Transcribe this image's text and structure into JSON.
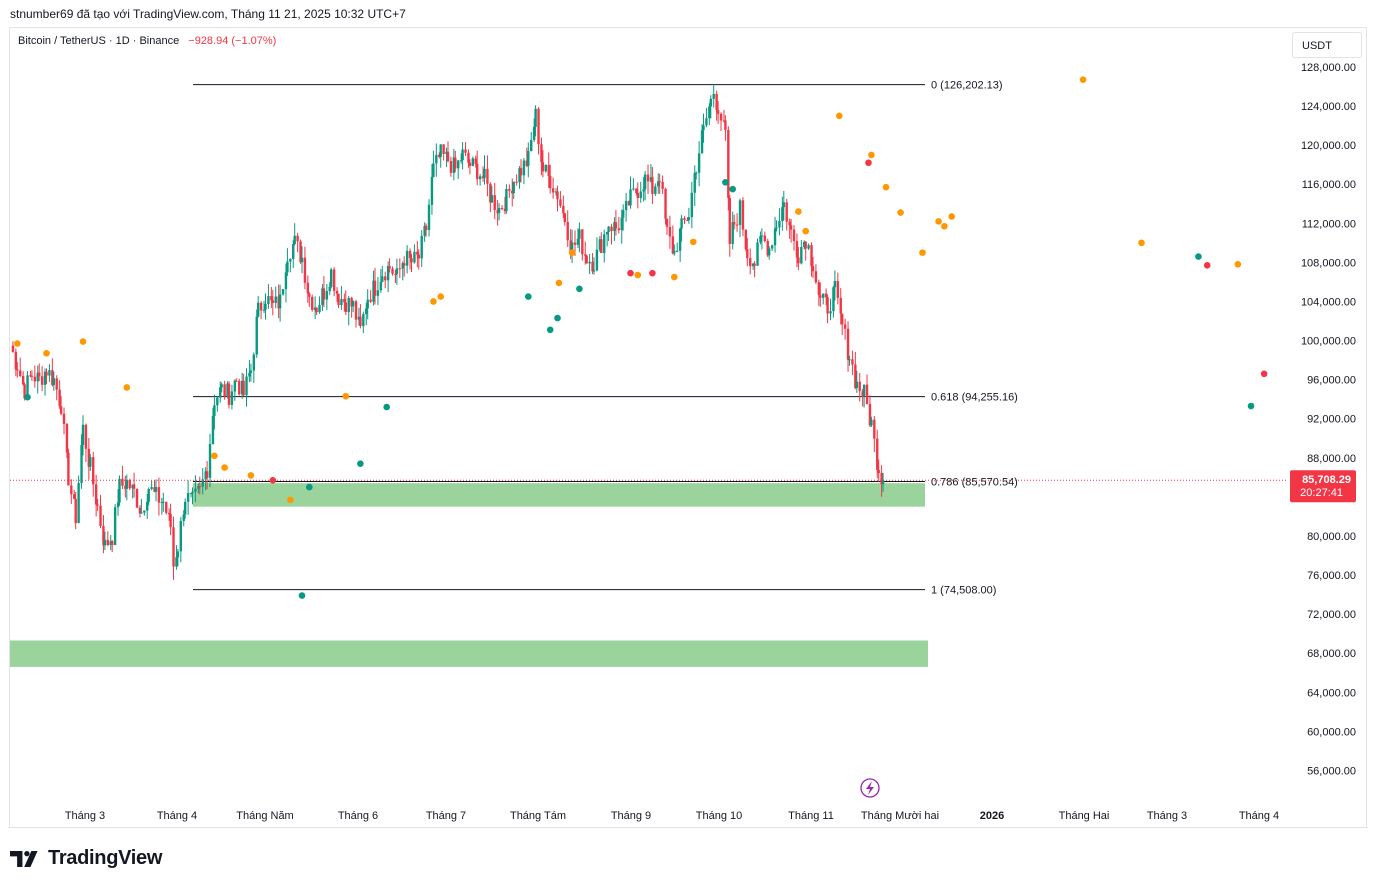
{
  "header": {
    "text": "stnumber69 đã tạo với TradingView.com, Tháng 11 21, 2025 10:32 UTC+7"
  },
  "symbol": {
    "name": "Bitcoin / TetherUS · 1D · Binance",
    "change": "−928.94 (−1.07%)"
  },
  "currency": "USDT",
  "brand": {
    "name": "TradingView",
    "icon": "tradingview-logo"
  },
  "event_icon": "lightning-icon",
  "colors": {
    "up": "#089981",
    "down": "#f23645",
    "zone": "#9ad39b",
    "dot_orange": "#ff9800",
    "dot_red": "#f23645",
    "dot_green": "#089981",
    "event": "#9c27b0"
  },
  "last_price": {
    "value": "85,708.29",
    "countdown": "20:27:41"
  },
  "chart_data": {
    "type": "candlestick",
    "y_axis": {
      "min": 52000,
      "max": 130000,
      "ticks": [
        "128,000.00",
        "124,000.00",
        "120,000.00",
        "116,000.00",
        "112,000.00",
        "108,000.00",
        "104,000.00",
        "100,000.00",
        "96,000.00",
        "92,000.00",
        "88,000.00",
        "80,000.00",
        "76,000.00",
        "72,000.00",
        "68,000.00",
        "64,000.00",
        "60,000.00",
        "56,000.00"
      ],
      "tick_values": [
        128000,
        124000,
        120000,
        116000,
        112000,
        108000,
        104000,
        100000,
        96000,
        92000,
        88000,
        80000,
        76000,
        72000,
        68000,
        64000,
        60000,
        56000
      ]
    },
    "x_axis": {
      "labels": [
        "Tháng 3",
        "Tháng 4",
        "Tháng Năm",
        "Tháng 6",
        "Tháng 7",
        "Tháng Tám",
        "Tháng 9",
        "Tháng 10",
        "Tháng 11",
        "Tháng Mười hai",
        "2026",
        "Tháng Hai",
        "Tháng 3",
        "Tháng 4"
      ],
      "bold": [
        "2026"
      ]
    },
    "fib_levels": [
      {
        "ratio": 0,
        "value": 126202.13,
        "label": "0 (126,202.13)"
      },
      {
        "ratio": 0.618,
        "value": 94255.16,
        "label": "0.618 (94,255.16)"
      },
      {
        "ratio": 0.786,
        "value": 85570.54,
        "label": "0.786 (85,570.54)"
      },
      {
        "ratio": 1,
        "value": 74508.0,
        "label": "1 (74,508.00)"
      }
    ],
    "zones": [
      {
        "top": 85400,
        "bottom": 83000
      },
      {
        "top": 69300,
        "bottom": 66600
      }
    ],
    "anchors": [
      [
        0,
        99500
      ],
      [
        5,
        97500
      ],
      [
        10,
        95000
      ],
      [
        15,
        96500
      ],
      [
        20,
        96000
      ],
      [
        25,
        97000
      ],
      [
        30,
        96000
      ],
      [
        35,
        93500
      ],
      [
        40,
        86000
      ],
      [
        45,
        82000
      ],
      [
        50,
        91000
      ],
      [
        55,
        87000
      ],
      [
        60,
        83000
      ],
      [
        65,
        79000
      ],
      [
        70,
        80000
      ],
      [
        75,
        85000
      ],
      [
        80,
        85500
      ],
      [
        85,
        84500
      ],
      [
        90,
        82500
      ],
      [
        95,
        85000
      ],
      [
        100,
        84000
      ],
      [
        105,
        83500
      ],
      [
        110,
        81000
      ],
      [
        112,
        77000
      ],
      [
        115,
        79000
      ],
      [
        120,
        84000
      ],
      [
        125,
        83500
      ],
      [
        130,
        84500
      ],
      [
        135,
        87000
      ],
      [
        140,
        94000
      ],
      [
        145,
        95000
      ],
      [
        150,
        94500
      ],
      [
        155,
        96000
      ],
      [
        160,
        94500
      ],
      [
        165,
        97000
      ],
      [
        170,
        103000
      ],
      [
        175,
        104500
      ],
      [
        180,
        103500
      ],
      [
        185,
        104000
      ],
      [
        190,
        109000
      ],
      [
        195,
        110000
      ],
      [
        200,
        108500
      ],
      [
        205,
        104500
      ],
      [
        210,
        103500
      ],
      [
        215,
        105000
      ],
      [
        220,
        107000
      ],
      [
        225,
        104500
      ],
      [
        230,
        104000
      ],
      [
        235,
        103500
      ],
      [
        240,
        101000
      ],
      [
        245,
        104500
      ],
      [
        250,
        105500
      ],
      [
        255,
        107000
      ],
      [
        260,
        107500
      ],
      [
        265,
        106500
      ],
      [
        270,
        108500
      ],
      [
        275,
        108000
      ],
      [
        280,
        108500
      ],
      [
        285,
        111500
      ],
      [
        290,
        117500
      ],
      [
        295,
        119000
      ],
      [
        300,
        118500
      ],
      [
        305,
        117500
      ],
      [
        310,
        119000
      ],
      [
        315,
        118000
      ],
      [
        320,
        117500
      ],
      [
        325,
        116500
      ],
      [
        330,
        114500
      ],
      [
        335,
        113500
      ],
      [
        340,
        114500
      ],
      [
        345,
        116500
      ],
      [
        350,
        117500
      ],
      [
        355,
        118500
      ],
      [
        360,
        123000
      ],
      [
        365,
        117500
      ],
      [
        370,
        116500
      ],
      [
        375,
        115000
      ],
      [
        380,
        112500
      ],
      [
        385,
        109500
      ],
      [
        390,
        110500
      ],
      [
        395,
        108500
      ],
      [
        400,
        108000
      ],
      [
        405,
        110000
      ],
      [
        410,
        112000
      ],
      [
        415,
        111500
      ],
      [
        420,
        112500
      ],
      [
        425,
        114500
      ],
      [
        430,
        115500
      ],
      [
        435,
        116500
      ],
      [
        440,
        115500
      ],
      [
        445,
        117000
      ],
      [
        450,
        111000
      ],
      [
        455,
        109000
      ],
      [
        460,
        111500
      ],
      [
        465,
        113000
      ],
      [
        470,
        118000
      ],
      [
        475,
        121500
      ],
      [
        480,
        124500
      ],
      [
        482,
        125500
      ],
      [
        485,
        124000
      ],
      [
        490,
        121000
      ],
      [
        493,
        110000
      ],
      [
        496,
        112000
      ],
      [
        500,
        113500
      ],
      [
        505,
        109000
      ],
      [
        510,
        108000
      ],
      [
        515,
        110500
      ],
      [
        520,
        109500
      ],
      [
        525,
        112000
      ],
      [
        530,
        114000
      ],
      [
        535,
        111000
      ],
      [
        540,
        109000
      ],
      [
        545,
        110500
      ],
      [
        550,
        108000
      ],
      [
        555,
        104000
      ],
      [
        560,
        103500
      ],
      [
        565,
        105000
      ],
      [
        570,
        101500
      ],
      [
        575,
        98500
      ],
      [
        580,
        95500
      ],
      [
        585,
        94500
      ],
      [
        590,
        91500
      ],
      [
        592,
        89500
      ],
      [
        595,
        87000
      ],
      [
        598,
        85700
      ]
    ],
    "markers": [
      {
        "i": 5,
        "value": 99700,
        "color": "orange",
        "pos": "above"
      },
      {
        "i": 12,
        "value": 94200,
        "color": "green",
        "pos": "below"
      },
      {
        "i": 25,
        "value": 98700,
        "color": "orange",
        "pos": "above"
      },
      {
        "i": 50,
        "value": 99900,
        "color": "orange",
        "pos": "above"
      },
      {
        "i": 80,
        "value": 95200,
        "color": "orange",
        "pos": "above"
      },
      {
        "i": 140,
        "value": 88200,
        "color": "orange",
        "pos": "above"
      },
      {
        "i": 147,
        "value": 87000,
        "color": "orange",
        "pos": "above"
      },
      {
        "i": 165,
        "value": 86200,
        "color": "orange",
        "pos": "above"
      },
      {
        "i": 180,
        "value": 85700,
        "color": "red",
        "pos": "above"
      },
      {
        "i": 192,
        "value": 83700,
        "color": "orange",
        "pos": "above"
      },
      {
        "i": 200,
        "value": 73900,
        "color": "green",
        "pos": "below"
      },
      {
        "i": 205,
        "value": 85000,
        "color": "green",
        "pos": "below"
      },
      {
        "i": 230,
        "value": 94300,
        "color": "orange",
        "pos": "above"
      },
      {
        "i": 240,
        "value": 87400,
        "color": "green",
        "pos": "below"
      },
      {
        "i": 258,
        "value": 93200,
        "color": "green",
        "pos": "below"
      },
      {
        "i": 290,
        "value": 104000,
        "color": "orange",
        "pos": "above"
      },
      {
        "i": 295,
        "value": 104500,
        "color": "orange",
        "pos": "above"
      },
      {
        "i": 355,
        "value": 104500,
        "color": "green",
        "pos": "below"
      },
      {
        "i": 370,
        "value": 101100,
        "color": "green",
        "pos": "below"
      },
      {
        "i": 375,
        "value": 102300,
        "color": "green",
        "pos": "below"
      },
      {
        "i": 376,
        "value": 105900,
        "color": "orange",
        "pos": "above"
      },
      {
        "i": 385,
        "value": 109000,
        "color": "orange",
        "pos": "above"
      },
      {
        "i": 390,
        "value": 105300,
        "color": "green",
        "pos": "below"
      },
      {
        "i": 425,
        "value": 106900,
        "color": "red",
        "pos": "above"
      },
      {
        "i": 430,
        "value": 106700,
        "color": "orange",
        "pos": "above"
      },
      {
        "i": 440,
        "value": 106900,
        "color": "red",
        "pos": "above"
      },
      {
        "i": 455,
        "value": 106500,
        "color": "orange",
        "pos": "above"
      },
      {
        "i": 468,
        "value": 110100,
        "color": "orange",
        "pos": "above"
      },
      {
        "i": 490,
        "value": 116200,
        "color": "green",
        "pos": "below"
      },
      {
        "i": 495,
        "value": 115500,
        "color": "green",
        "pos": "below"
      },
      {
        "i": 540,
        "value": 113200,
        "color": "orange",
        "pos": "above"
      },
      {
        "i": 545,
        "value": 111200,
        "color": "orange",
        "pos": "above"
      },
      {
        "i": 568,
        "value": 123000,
        "color": "orange",
        "pos": "above"
      },
      {
        "i": 588,
        "value": 118200,
        "color": "red",
        "pos": "above"
      },
      {
        "i": 590,
        "value": 119000,
        "color": "orange",
        "pos": "above"
      },
      {
        "i": 600,
        "value": 115700,
        "color": "orange",
        "pos": "above"
      },
      {
        "i": 610,
        "value": 113100,
        "color": "orange",
        "pos": "above"
      },
      {
        "i": 625,
        "value": 109000,
        "color": "orange",
        "pos": "above"
      },
      {
        "i": 636,
        "value": 112200,
        "color": "orange",
        "pos": "above"
      },
      {
        "i": 640,
        "value": 111700,
        "color": "orange",
        "pos": "above"
      },
      {
        "i": 645,
        "value": 112700,
        "color": "orange",
        "pos": "above"
      },
      {
        "i": 735,
        "value": 126700,
        "color": "orange",
        "pos": "above"
      },
      {
        "i": 775,
        "value": 110000,
        "color": "orange",
        "pos": "above"
      },
      {
        "i": 814,
        "value": 108600,
        "color": "green",
        "pos": "below"
      },
      {
        "i": 820,
        "value": 107700,
        "color": "red",
        "pos": "above"
      },
      {
        "i": 841,
        "value": 107800,
        "color": "orange",
        "pos": "above"
      },
      {
        "i": 850,
        "value": 93300,
        "color": "green",
        "pos": "below"
      },
      {
        "i": 859,
        "value": 96600,
        "color": "red",
        "pos": "above"
      }
    ]
  }
}
